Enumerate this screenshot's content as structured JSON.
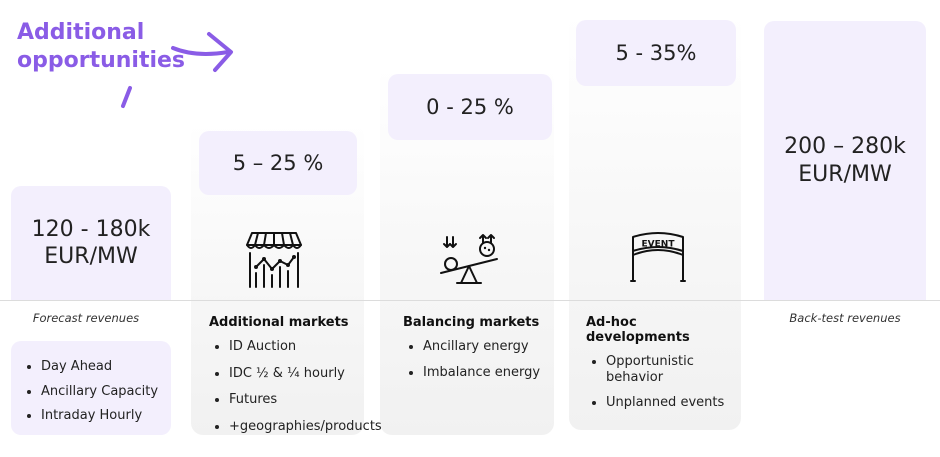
{
  "headline": {
    "line1": "Additional",
    "line2": "opportunities"
  },
  "colors": {
    "accent": "#8a5ce6",
    "tile": "#f3effd",
    "panel": "#f4f4f4"
  },
  "forecast": {
    "value_line1": "120 - 180k",
    "value_line2": "EUR/MW",
    "caption": "Forecast revenues",
    "items": [
      "Day Ahead",
      "Ancillary Capacity",
      "Intraday Hourly"
    ]
  },
  "additional_markets": {
    "range": "5 – 25 %",
    "icon": "market-stall-chart-icon",
    "title": "Additional markets",
    "items": [
      "ID Auction",
      "IDC ½ & ¼ hourly",
      "Futures",
      "+geographies/products"
    ]
  },
  "balancing_markets": {
    "range": "0 - 25 %",
    "icon": "balance-seesaw-icon",
    "title": "Balancing markets",
    "items": [
      "Ancillary energy",
      "Imbalance energy"
    ]
  },
  "adhoc": {
    "range": "5 - 35%",
    "icon": "event-banner-icon",
    "icon_text": "EVENT",
    "title": "Ad-hoc developments",
    "items": [
      "Opportunistic behavior",
      "Unplanned events"
    ]
  },
  "backtest": {
    "value_line1": "200 – 280k",
    "value_line2": "EUR/MW",
    "caption": "Back-test revenues"
  }
}
